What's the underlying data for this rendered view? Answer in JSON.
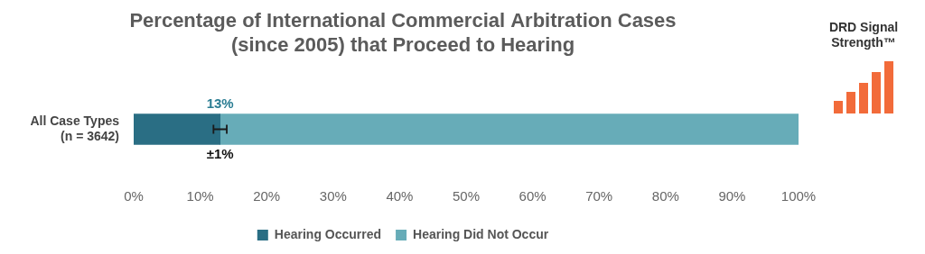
{
  "chart_data": {
    "type": "bar",
    "orientation": "horizontal",
    "stacked": true,
    "title": [
      "Percentage of International Commercial Arbitration Cases",
      "(since 2005) that Proceed to Hearing"
    ],
    "categories": [
      [
        "All Case Types",
        "(n = 3642)"
      ]
    ],
    "series": [
      {
        "name": "Hearing Occurred",
        "color": "#2a6e84",
        "values": [
          13
        ],
        "value_labels": [
          "13%"
        ],
        "data_labels": true,
        "error": [
          1
        ],
        "error_labels": [
          "±1%"
        ]
      },
      {
        "name": "Hearing Did Not Occur",
        "color": "#67acb8",
        "values": [
          87
        ]
      }
    ],
    "xlim": [
      0,
      100
    ],
    "xticks": [
      {
        "value": 0,
        "label": "0%"
      },
      {
        "value": 10,
        "label": "10%"
      },
      {
        "value": 20,
        "label": "20%"
      },
      {
        "value": 30,
        "label": "30%"
      },
      {
        "value": 40,
        "label": "40%"
      },
      {
        "value": 50,
        "label": "50%"
      },
      {
        "value": 60,
        "label": "60%"
      },
      {
        "value": 70,
        "label": "70%"
      },
      {
        "value": 80,
        "label": "80%"
      },
      {
        "value": 90,
        "label": "90%"
      },
      {
        "value": 100,
        "label": "100%"
      }
    ],
    "grid": false,
    "legend": "bottom",
    "signal_label": "DRD Signal Strength™"
  }
}
